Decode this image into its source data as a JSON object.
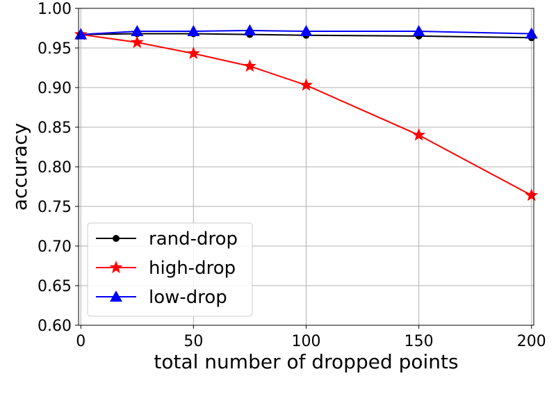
{
  "chart_data": {
    "type": "line",
    "xlabel": "total number of dropped points",
    "ylabel": "accuracy",
    "xlim": [
      -1,
      201
    ],
    "ylim": [
      0.6,
      1.0
    ],
    "xticks": [
      0,
      50,
      100,
      150,
      200
    ],
    "xtick_labels": [
      "0",
      "50",
      "100",
      "150",
      "200"
    ],
    "yticks": [
      0.6,
      0.65,
      0.7,
      0.75,
      0.8,
      0.85,
      0.9,
      0.95,
      1.0
    ],
    "ytick_labels": [
      "0.60",
      "0.65",
      "0.70",
      "0.75",
      "0.80",
      "0.85",
      "0.90",
      "0.95",
      "1.00"
    ],
    "x": [
      0,
      25,
      50,
      75,
      100,
      150,
      200
    ],
    "grid": true,
    "legend_position": "lower-left",
    "series": [
      {
        "name": "rand-drop",
        "color": "#000000",
        "marker": "circle",
        "values": [
          0.967,
          0.968,
          0.968,
          0.967,
          0.966,
          0.965,
          0.963
        ]
      },
      {
        "name": "high-drop",
        "color": "#ff0000",
        "marker": "star",
        "values": [
          0.967,
          0.957,
          0.943,
          0.927,
          0.903,
          0.84,
          0.764
        ]
      },
      {
        "name": "low-drop",
        "color": "#0000ff",
        "marker": "triangle",
        "values": [
          0.967,
          0.971,
          0.971,
          0.972,
          0.971,
          0.971,
          0.968
        ]
      }
    ]
  }
}
